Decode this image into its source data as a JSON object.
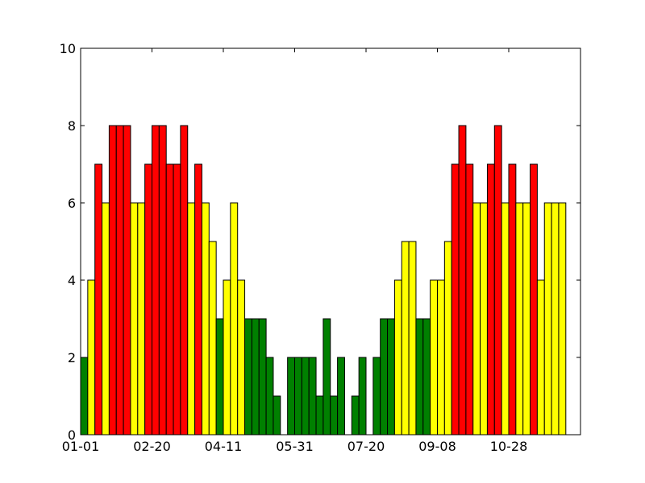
{
  "chart_data": {
    "type": "bar",
    "x_tick_labels": [
      "01-01",
      "02-20",
      "04-11",
      "05-31",
      "07-20",
      "09-08",
      "10-28"
    ],
    "y_ticks": [
      0,
      2,
      4,
      6,
      8,
      10
    ],
    "ylim": [
      0,
      10
    ],
    "grid": false,
    "legend": "none",
    "values": [
      2,
      4,
      7,
      6,
      8,
      8,
      8,
      6,
      6,
      7,
      8,
      8,
      7,
      7,
      8,
      6,
      7,
      6,
      5,
      3,
      4,
      6,
      4,
      3,
      3,
      3,
      2,
      1,
      0,
      2,
      2,
      2,
      2,
      1,
      3,
      1,
      2,
      0,
      1,
      2,
      0,
      2,
      3,
      3,
      4,
      5,
      5,
      3,
      3,
      4,
      4,
      5,
      7,
      8,
      7,
      6,
      6,
      7,
      8,
      6,
      7,
      6,
      6,
      7,
      4,
      6,
      6,
      6
    ],
    "color_rule": {
      "red_min": 7,
      "yellow_min": 4
    },
    "colors": {
      "red": "#ff0000",
      "yellow": "#ffff00",
      "green": "#008000",
      "edge": "#000000"
    }
  }
}
